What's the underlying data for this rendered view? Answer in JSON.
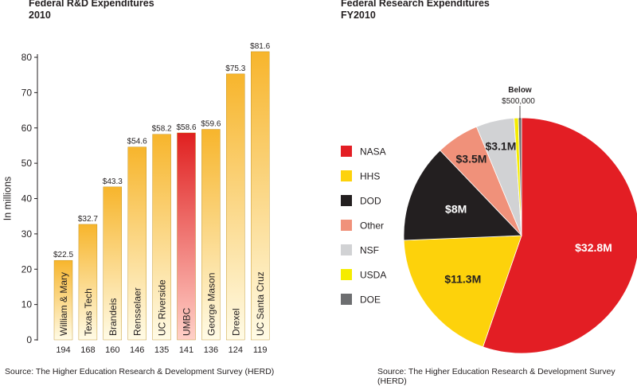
{
  "bar_panel": {
    "title_line1": "Federal R&D Expenditures",
    "title_line2": "2010",
    "source": "Source: The Higher Education Research & Development Survey (HERD)"
  },
  "pie_panel": {
    "title_line1": "Federal Research Expenditures",
    "title_line2": "FY2010",
    "source": "Source: The Higher Education Research & Development Survey (HERD)",
    "below_label_line1": "Below",
    "below_label_line2": "$500,000"
  },
  "colors": {
    "bar_top": "#f7b52c",
    "bar_bottom": "#fffbe6",
    "highlight_top": "#e02020",
    "highlight_bottom": "#ffd0c8"
  },
  "chart_data": [
    {
      "type": "bar",
      "title": "Federal R&D Expenditures 2010",
      "ylabel": "In millions",
      "ylim": [
        0,
        80
      ],
      "yticks": [
        0,
        10,
        20,
        30,
        40,
        50,
        60,
        70,
        80
      ],
      "categories": [
        "William & Mary",
        "Texas Tech",
        "Brandeis",
        "Rensselaer",
        "UC Riverside",
        "UMBC",
        "George Mason",
        "Drexel",
        "UC Santa Cruz"
      ],
      "values": [
        22.5,
        32.7,
        43.3,
        54.6,
        58.2,
        58.6,
        59.6,
        75.3,
        81.6
      ],
      "value_labels": [
        "$22.5",
        "$32.7",
        "$43.3",
        "$54.6",
        "$58.2",
        "$58.6",
        "$59.6",
        "$75.3",
        "$81.6"
      ],
      "rank_labels": [
        "194",
        "168",
        "160",
        "146",
        "135",
        "141",
        "136",
        "124",
        "119"
      ],
      "highlight": "UMBC",
      "grid": false
    },
    {
      "type": "pie",
      "title": "Federal Research Expenditures FY2010",
      "legend_position": "left",
      "slices": [
        {
          "name": "NASA",
          "value": 32.8,
          "label": "$32.8M",
          "color": "#e31e24"
        },
        {
          "name": "HHS",
          "value": 11.3,
          "label": "$11.3M",
          "color": "#fdd20b"
        },
        {
          "name": "DOD",
          "value": 8,
          "label": "$8M",
          "color": "#231f20"
        },
        {
          "name": "Other",
          "value": 3.5,
          "label": "$3.5M",
          "color": "#f0917a"
        },
        {
          "name": "NSF",
          "value": 3.1,
          "label": "$3.1M",
          "color": "#d1d2d4"
        },
        {
          "name": "USDA",
          "value": 0.35,
          "label": "",
          "color": "#f5ec00"
        },
        {
          "name": "DOE",
          "value": 0.25,
          "label": "",
          "color": "#6d6e70"
        }
      ]
    }
  ]
}
